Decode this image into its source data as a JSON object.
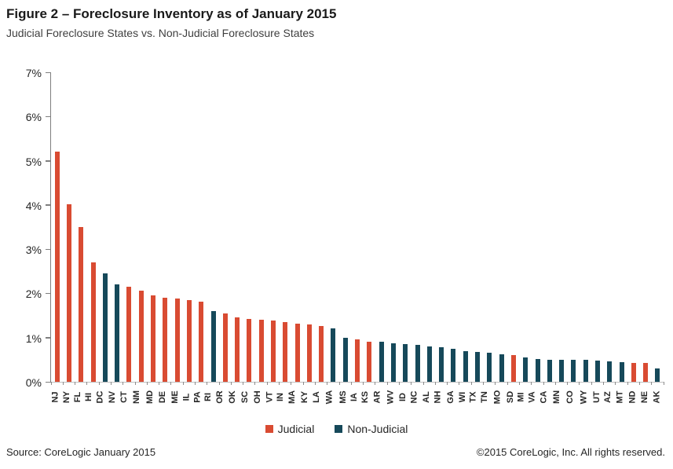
{
  "title": "Figure 2 – Foreclosure Inventory as of January 2015",
  "subtitle": "Judicial Foreclosure States vs. Non-Judicial Foreclosure States",
  "legend": {
    "judicial_label": "Judicial",
    "non_judicial_label": "Non-Judicial"
  },
  "colors": {
    "judicial": "#D94B32",
    "non_judicial": "#16495A"
  },
  "footer": {
    "source": "Source: CoreLogic January 2015",
    "copyright": "©2015 CoreLogic, Inc. All rights reserved."
  },
  "chart_data": {
    "type": "bar",
    "title": "Figure 2 – Foreclosure Inventory as of January 2015",
    "subtitle": "Judicial Foreclosure States vs. Non-Judicial Foreclosure States",
    "xlabel": "",
    "ylabel": "",
    "ylim": [
      0,
      7
    ],
    "ytick_labels": [
      "0%",
      "1%",
      "2%",
      "3%",
      "4%",
      "5%",
      "6%",
      "7%"
    ],
    "grid": false,
    "legend_position": "bottom",
    "series_legend": [
      "Judicial",
      "Non-Judicial"
    ],
    "points": [
      {
        "state": "NJ",
        "value": 5.2,
        "group": "judicial"
      },
      {
        "state": "NY",
        "value": 4.0,
        "group": "judicial"
      },
      {
        "state": "FL",
        "value": 3.5,
        "group": "judicial"
      },
      {
        "state": "HI",
        "value": 2.7,
        "group": "judicial"
      },
      {
        "state": "DC",
        "value": 2.45,
        "group": "non_judicial"
      },
      {
        "state": "NV",
        "value": 2.2,
        "group": "non_judicial"
      },
      {
        "state": "CT",
        "value": 2.15,
        "group": "judicial"
      },
      {
        "state": "NM",
        "value": 2.05,
        "group": "judicial"
      },
      {
        "state": "MD",
        "value": 1.95,
        "group": "judicial"
      },
      {
        "state": "DE",
        "value": 1.9,
        "group": "judicial"
      },
      {
        "state": "ME",
        "value": 1.88,
        "group": "judicial"
      },
      {
        "state": "IL",
        "value": 1.85,
        "group": "judicial"
      },
      {
        "state": "PA",
        "value": 1.8,
        "group": "judicial"
      },
      {
        "state": "RI",
        "value": 1.6,
        "group": "non_judicial"
      },
      {
        "state": "OR",
        "value": 1.55,
        "group": "judicial"
      },
      {
        "state": "OK",
        "value": 1.45,
        "group": "judicial"
      },
      {
        "state": "SC",
        "value": 1.42,
        "group": "judicial"
      },
      {
        "state": "OH",
        "value": 1.4,
        "group": "judicial"
      },
      {
        "state": "VT",
        "value": 1.38,
        "group": "judicial"
      },
      {
        "state": "IN",
        "value": 1.35,
        "group": "judicial"
      },
      {
        "state": "MA",
        "value": 1.32,
        "group": "judicial"
      },
      {
        "state": "KY",
        "value": 1.3,
        "group": "judicial"
      },
      {
        "state": "LA",
        "value": 1.25,
        "group": "judicial"
      },
      {
        "state": "WA",
        "value": 1.2,
        "group": "non_judicial"
      },
      {
        "state": "MS",
        "value": 1.0,
        "group": "non_judicial"
      },
      {
        "state": "IA",
        "value": 0.95,
        "group": "judicial"
      },
      {
        "state": "KS",
        "value": 0.9,
        "group": "judicial"
      },
      {
        "state": "AR",
        "value": 0.9,
        "group": "non_judicial"
      },
      {
        "state": "WV",
        "value": 0.87,
        "group": "non_judicial"
      },
      {
        "state": "ID",
        "value": 0.85,
        "group": "non_judicial"
      },
      {
        "state": "NC",
        "value": 0.83,
        "group": "non_judicial"
      },
      {
        "state": "AL",
        "value": 0.8,
        "group": "non_judicial"
      },
      {
        "state": "NH",
        "value": 0.78,
        "group": "non_judicial"
      },
      {
        "state": "GA",
        "value": 0.75,
        "group": "non_judicial"
      },
      {
        "state": "WI",
        "value": 0.7,
        "group": "non_judicial"
      },
      {
        "state": "TX",
        "value": 0.68,
        "group": "non_judicial"
      },
      {
        "state": "TN",
        "value": 0.65,
        "group": "non_judicial"
      },
      {
        "state": "MO",
        "value": 0.62,
        "group": "non_judicial"
      },
      {
        "state": "SD",
        "value": 0.6,
        "group": "judicial"
      },
      {
        "state": "MI",
        "value": 0.55,
        "group": "non_judicial"
      },
      {
        "state": "VA",
        "value": 0.52,
        "group": "non_judicial"
      },
      {
        "state": "CA",
        "value": 0.5,
        "group": "non_judicial"
      },
      {
        "state": "MN",
        "value": 0.5,
        "group": "non_judicial"
      },
      {
        "state": "CO",
        "value": 0.5,
        "group": "non_judicial"
      },
      {
        "state": "WY",
        "value": 0.49,
        "group": "non_judicial"
      },
      {
        "state": "UT",
        "value": 0.48,
        "group": "non_judicial"
      },
      {
        "state": "AZ",
        "value": 0.46,
        "group": "non_judicial"
      },
      {
        "state": "MT",
        "value": 0.45,
        "group": "non_judicial"
      },
      {
        "state": "ND",
        "value": 0.43,
        "group": "judicial"
      },
      {
        "state": "NE",
        "value": 0.42,
        "group": "judicial"
      },
      {
        "state": "AK",
        "value": 0.3,
        "group": "non_judicial"
      }
    ]
  }
}
